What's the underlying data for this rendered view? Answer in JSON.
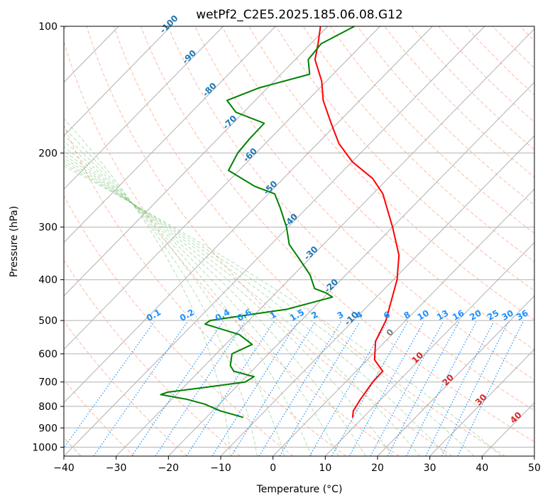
{
  "chart_data": {
    "type": "line",
    "subtype": "skew-T log-P diagram",
    "title": "wetPf2_C2E5.2025.185.06.08.G12",
    "xlabel": "Temperature (°C)",
    "ylabel": "Pressure (hPa)",
    "xlim": [
      -40,
      50
    ],
    "ylim": [
      1050,
      100
    ],
    "y_scale": "log",
    "grid": true,
    "x_ticks": [
      -40,
      -30,
      -20,
      -10,
      0,
      10,
      20,
      30,
      40,
      50
    ],
    "x_tick_labels": [
      "−40",
      "−30",
      "−20",
      "−10",
      "0",
      "10",
      "20",
      "30",
      "40",
      "50"
    ],
    "y_ticks": [
      1000,
      900,
      800,
      700,
      600,
      500,
      400,
      300,
      200,
      100
    ],
    "y_tick_labels": [
      "1000",
      "900",
      "800",
      "700",
      "600",
      "500",
      "400",
      "300",
      "200",
      "100"
    ],
    "series": [
      {
        "color": "#ff0000",
        "points": [
          [
            850,
            8.0
          ],
          [
            820,
            6.9
          ],
          [
            770,
            6.1
          ],
          [
            700,
            5.2
          ],
          [
            660,
            5.1
          ],
          [
            620,
            1.4
          ],
          [
            560,
            -1.9
          ],
          [
            500,
            -3.8
          ],
          [
            450,
            -6.4
          ],
          [
            400,
            -9.3
          ],
          [
            350,
            -13.5
          ],
          [
            300,
            -20.0
          ],
          [
            270,
            -24.7
          ],
          [
            250,
            -28.1
          ],
          [
            230,
            -32.9
          ],
          [
            210,
            -39.9
          ],
          [
            190,
            -45.9
          ],
          [
            170,
            -51.2
          ],
          [
            150,
            -57.0
          ],
          [
            135,
            -60.9
          ],
          [
            120,
            -66.2
          ],
          [
            110,
            -68.6
          ],
          [
            100,
            -71.4
          ]
        ]
      },
      {
        "color": "#008000",
        "points": [
          [
            850,
            -12.9
          ],
          [
            840,
            -14.7
          ],
          [
            820,
            -18.5
          ],
          [
            790,
            -22.8
          ],
          [
            770,
            -27.0
          ],
          [
            750,
            -33.0
          ],
          [
            740,
            -32.1
          ],
          [
            720,
            -25.5
          ],
          [
            700,
            -19.2
          ],
          [
            680,
            -18.5
          ],
          [
            660,
            -23.4
          ],
          [
            640,
            -25.1
          ],
          [
            600,
            -27.0
          ],
          [
            570,
            -24.9
          ],
          [
            540,
            -29.2
          ],
          [
            510,
            -37.7
          ],
          [
            500,
            -37.4
          ],
          [
            490,
            -33.3
          ],
          [
            470,
            -24.8
          ],
          [
            440,
            -18.4
          ],
          [
            430,
            -20.4
          ],
          [
            420,
            -23.4
          ],
          [
            390,
            -26.8
          ],
          [
            360,
            -31.4
          ],
          [
            330,
            -36.5
          ],
          [
            300,
            -40.3
          ],
          [
            270,
            -45.1
          ],
          [
            250,
            -48.8
          ],
          [
            240,
            -54.0
          ],
          [
            220,
            -62.0
          ],
          [
            200,
            -63.5
          ],
          [
            185,
            -63.9
          ],
          [
            170,
            -64.0
          ],
          [
            160,
            -71.5
          ],
          [
            150,
            -75.4
          ],
          [
            140,
            -71.6
          ],
          [
            130,
            -64.5
          ],
          [
            120,
            -67.5
          ],
          [
            110,
            -68.0
          ],
          [
            100,
            -64.9
          ]
        ]
      }
    ],
    "isotherm_labels": [
      "-100",
      "-90",
      "-80",
      "-70",
      "-60",
      "-50",
      "-40",
      "-30",
      "-20",
      "-10",
      "0",
      "10",
      "20",
      "30",
      "40"
    ],
    "mixing_ratio_labels": [
      "0.1",
      "0.2",
      "0.4",
      "0.6",
      "1",
      "1.5",
      "2",
      "3",
      "4",
      "6",
      "8",
      "10",
      "13",
      "16",
      "20",
      "25",
      "30",
      "36"
    ],
    "colors": {
      "temperature": "#ff0000",
      "dewpoint": "#008000",
      "isotherm_cold_label": "#1f77b4",
      "isotherm_warm_label": "#d62728",
      "isotherm_zero_label": "#7f7f7f",
      "mixing_ratio": "#1e90ff",
      "dry_adiabat": "#ff8c69",
      "moist_adiabat": "#5cb85c",
      "background_adiabat": "#d2b48c",
      "grid": "#b0b0b0"
    }
  }
}
